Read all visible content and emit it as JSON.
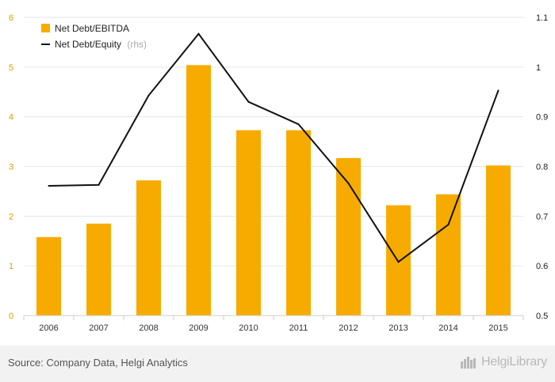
{
  "chart_data": {
    "type": "bar",
    "categories": [
      "2006",
      "2007",
      "2008",
      "2009",
      "2010",
      "2011",
      "2012",
      "2013",
      "2014",
      "2015"
    ],
    "series": [
      {
        "name": "Net Debt/EBITDA",
        "type": "bar",
        "axis": "left",
        "color": "#f7ab00",
        "values": [
          1.58,
          1.85,
          2.72,
          5.04,
          3.73,
          3.73,
          3.17,
          2.22,
          2.44,
          3.02
        ]
      },
      {
        "name": "Net Debt/Equity",
        "name_suffix": "(rhs)",
        "type": "line",
        "axis": "right",
        "color": "#111111",
        "values": [
          0.761,
          0.763,
          0.943,
          1.067,
          0.93,
          0.885,
          0.766,
          0.608,
          0.683,
          0.953
        ]
      }
    ],
    "y_left": {
      "ylim": [
        0,
        6
      ],
      "ticks": [
        "0",
        "1",
        "2",
        "3",
        "4",
        "5",
        "6"
      ],
      "color": "#e69a00"
    },
    "y_right": {
      "ylim": [
        0.5,
        1.1
      ],
      "ticks": [
        "0.5",
        "0.6",
        "0.7",
        "0.8",
        "0.9",
        "1",
        "1.1"
      ]
    },
    "grid": true,
    "legend_position": "top-left",
    "title": "",
    "xlabel": "",
    "ylabel": ""
  },
  "footer": {
    "source": "Source: Company Data, Helgi Analytics",
    "brand": "HelgiLibrary",
    "brand_icon": "helgi-library-logo-icon"
  }
}
